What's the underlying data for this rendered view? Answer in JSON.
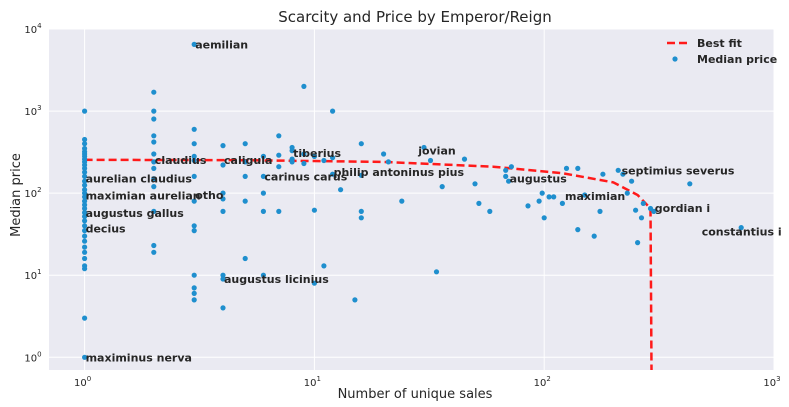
{
  "chart_data": {
    "type": "scatter",
    "title": "Scarcity and Price by Emperor/Reign",
    "xlabel": "Number of unique sales",
    "ylabel": "Median price",
    "xscale": "log",
    "yscale": "log",
    "xlim": [
      0.7,
      1000
    ],
    "ylim": [
      0.7,
      10000
    ],
    "grid": true,
    "legend_position": "top-right",
    "colors": {
      "points": "#1f8fce",
      "fit": "#ff1a1a",
      "background": "#eaeaf2",
      "grid": "#ffffff"
    },
    "x_ticks": [
      {
        "value": 1,
        "base": "10",
        "exp": "0"
      },
      {
        "value": 10,
        "base": "10",
        "exp": "1"
      },
      {
        "value": 100,
        "base": "10",
        "exp": "2"
      },
      {
        "value": 1000,
        "base": "10",
        "exp": "3"
      }
    ],
    "y_ticks": [
      {
        "value": 1,
        "base": "10",
        "exp": "0"
      },
      {
        "value": 10,
        "base": "10",
        "exp": "1"
      },
      {
        "value": 100,
        "base": "10",
        "exp": "2"
      },
      {
        "value": 1000,
        "base": "10",
        "exp": "3"
      },
      {
        "value": 10000,
        "base": "10",
        "exp": "4"
      }
    ],
    "series": [
      {
        "name": "Median price",
        "kind": "scatter",
        "points": [
          [
            1,
            1000
          ],
          [
            1,
            450
          ],
          [
            1,
            400
          ],
          [
            1,
            350
          ],
          [
            1,
            320
          ],
          [
            1,
            300
          ],
          [
            1,
            280
          ],
          [
            1,
            260
          ],
          [
            1,
            240
          ],
          [
            1,
            220
          ],
          [
            1,
            200
          ],
          [
            1,
            180
          ],
          [
            1,
            160
          ],
          [
            1,
            140
          ],
          [
            1,
            125
          ],
          [
            1,
            110
          ],
          [
            1,
            100
          ],
          [
            1,
            90
          ],
          [
            1,
            80
          ],
          [
            1,
            72
          ],
          [
            1,
            65
          ],
          [
            1,
            58
          ],
          [
            1,
            52
          ],
          [
            1,
            46
          ],
          [
            1,
            40
          ],
          [
            1,
            35
          ],
          [
            1,
            30
          ],
          [
            1,
            26
          ],
          [
            1,
            22
          ],
          [
            1,
            19
          ],
          [
            1,
            16
          ],
          [
            1,
            13
          ],
          [
            1,
            12
          ],
          [
            1,
            3
          ],
          [
            1,
            1
          ],
          [
            2,
            1700
          ],
          [
            2,
            1000
          ],
          [
            2,
            800
          ],
          [
            2,
            500
          ],
          [
            2,
            420
          ],
          [
            2,
            300
          ],
          [
            2,
            240
          ],
          [
            2,
            200
          ],
          [
            2,
            150
          ],
          [
            2,
            120
          ],
          [
            2,
            60
          ],
          [
            2,
            23
          ],
          [
            2,
            19
          ],
          [
            3,
            6500
          ],
          [
            3,
            600
          ],
          [
            3,
            400
          ],
          [
            3,
            280
          ],
          [
            3,
            250
          ],
          [
            3,
            160
          ],
          [
            3,
            80
          ],
          [
            3,
            40
          ],
          [
            3,
            35
          ],
          [
            3,
            10
          ],
          [
            3,
            7
          ],
          [
            3,
            6
          ],
          [
            3,
            5
          ],
          [
            4,
            380
          ],
          [
            4,
            220
          ],
          [
            4,
            100
          ],
          [
            4,
            85
          ],
          [
            4,
            60
          ],
          [
            4,
            10
          ],
          [
            4,
            9
          ],
          [
            4,
            4
          ],
          [
            5,
            400
          ],
          [
            5,
            240
          ],
          [
            5,
            160
          ],
          [
            5,
            80
          ],
          [
            5,
            16
          ],
          [
            6,
            280
          ],
          [
            6,
            160
          ],
          [
            6,
            100
          ],
          [
            6,
            60
          ],
          [
            6,
            10
          ],
          [
            7,
            500
          ],
          [
            7,
            290
          ],
          [
            7,
            210
          ],
          [
            7,
            60
          ],
          [
            8,
            360
          ],
          [
            8,
            330
          ],
          [
            8,
            260
          ],
          [
            8,
            240
          ],
          [
            9,
            2000
          ],
          [
            9,
            300
          ],
          [
            9,
            230
          ],
          [
            10,
            280
          ],
          [
            10,
            62
          ],
          [
            10,
            8
          ],
          [
            11,
            250
          ],
          [
            11,
            13
          ],
          [
            12,
            1000
          ],
          [
            12,
            270
          ],
          [
            12,
            170
          ],
          [
            13,
            110
          ],
          [
            15,
            5
          ],
          [
            16,
            400
          ],
          [
            16,
            165
          ],
          [
            16,
            60
          ],
          [
            16,
            50
          ],
          [
            20,
            300
          ],
          [
            21,
            240
          ],
          [
            24,
            80
          ],
          [
            30,
            360
          ],
          [
            32,
            250
          ],
          [
            34,
            11
          ],
          [
            36,
            120
          ],
          [
            45,
            260
          ],
          [
            50,
            130
          ],
          [
            52,
            75
          ],
          [
            58,
            60
          ],
          [
            68,
            190
          ],
          [
            68,
            160
          ],
          [
            70,
            140
          ],
          [
            72,
            210
          ],
          [
            85,
            70
          ],
          [
            95,
            80
          ],
          [
            98,
            100
          ],
          [
            100,
            50
          ],
          [
            105,
            90
          ],
          [
            110,
            90
          ],
          [
            120,
            75
          ],
          [
            125,
            200
          ],
          [
            140,
            200
          ],
          [
            140,
            36
          ],
          [
            150,
            95
          ],
          [
            165,
            30
          ],
          [
            175,
            60
          ],
          [
            180,
            170
          ],
          [
            210,
            190
          ],
          [
            220,
            170
          ],
          [
            230,
            100
          ],
          [
            240,
            140
          ],
          [
            250,
            62
          ],
          [
            255,
            25
          ],
          [
            265,
            50
          ],
          [
            270,
            75
          ],
          [
            290,
            65
          ],
          [
            300,
            60
          ],
          [
            430,
            130
          ],
          [
            720,
            38
          ]
        ]
      },
      {
        "name": "Best fit",
        "kind": "line",
        "points": [
          [
            1,
            255
          ],
          [
            5,
            252
          ],
          [
            20,
            240
          ],
          [
            60,
            210
          ],
          [
            120,
            175
          ],
          [
            200,
            135
          ],
          [
            255,
            95
          ],
          [
            290,
            65
          ],
          [
            293,
            0.7
          ]
        ]
      }
    ],
    "annotations": [
      {
        "text": "aemilian",
        "x": 3,
        "y": 6500
      },
      {
        "text": "claudius",
        "x": 2,
        "y": 255
      },
      {
        "text": "caligula",
        "x": 4,
        "y": 255
      },
      {
        "text": "tiberius",
        "x": 8,
        "y": 310
      },
      {
        "text": "jovian",
        "x": 28,
        "y": 330
      },
      {
        "text": "philip antoninus pius",
        "x": 12,
        "y": 180
      },
      {
        "text": "carinus carus",
        "x": 6,
        "y": 160
      },
      {
        "text": "aurelian claudius",
        "x": 1,
        "y": 150
      },
      {
        "text": "maximian aurelian",
        "x": 1,
        "y": 93
      },
      {
        "text": "otho",
        "x": 3,
        "y": 95
      },
      {
        "text": "augustus gallus",
        "x": 1,
        "y": 57
      },
      {
        "text": "decius",
        "x": 1,
        "y": 37
      },
      {
        "text": "augustus",
        "x": 70,
        "y": 150
      },
      {
        "text": "maximian",
        "x": 122,
        "y": 92
      },
      {
        "text": "septimius severus",
        "x": 215,
        "y": 188
      },
      {
        "text": "gordian i",
        "x": 300,
        "y": 66
      },
      {
        "text": "constantius i",
        "x": 480,
        "y": 34
      },
      {
        "text": "augustus licinius",
        "x": 4,
        "y": 9
      },
      {
        "text": "maximinus nerva",
        "x": 1,
        "y": 1
      }
    ]
  }
}
